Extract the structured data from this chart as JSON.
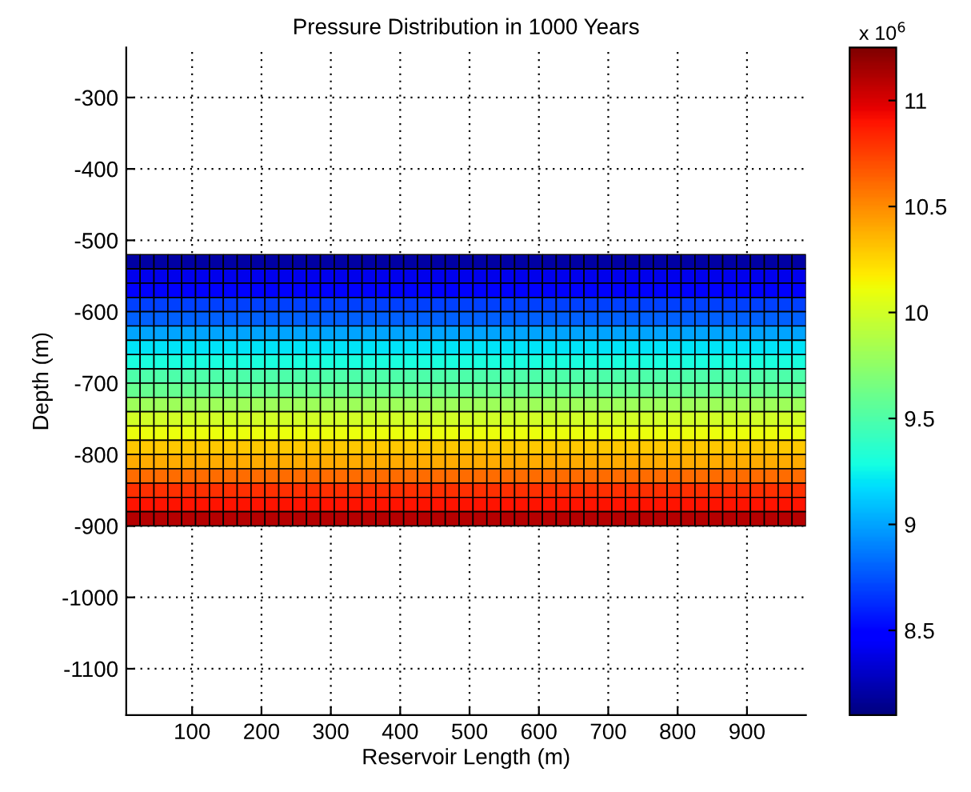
{
  "chart_data": {
    "type": "heatmap",
    "title": "Pressure Distribution in 1000 Years",
    "xlabel": "Reservoir Length (m)",
    "ylabel": "Depth (m)",
    "clabel": "x 10$^{6}$",
    "x": [
      15,
      35,
      55,
      75,
      95,
      115,
      135,
      155,
      175,
      195,
      215,
      235,
      255,
      275,
      295,
      315,
      335,
      355,
      375,
      395,
      415,
      435,
      455,
      475,
      495,
      515,
      535,
      555,
      575,
      595,
      615,
      635,
      655,
      675,
      695,
      715,
      735,
      755,
      775,
      795,
      815,
      835,
      855,
      875,
      895,
      915,
      935,
      955,
      975
    ],
    "y": [
      -530,
      -550,
      -570,
      -590,
      -610,
      -630,
      -650,
      -670,
      -690,
      -710,
      -730,
      -750,
      -770,
      -790,
      -810,
      -830,
      -850,
      -870,
      -890
    ],
    "cells": [
      [
        8.2,
        8.2,
        8.2,
        8.2,
        8.2,
        8.2,
        8.2,
        8.2,
        8.2,
        8.2,
        8.2,
        8.2,
        8.2,
        8.2,
        8.2,
        8.2,
        8.2,
        8.2,
        8.2,
        8.2,
        8.2,
        8.2,
        8.2,
        8.2,
        8.2,
        8.2,
        8.2,
        8.2,
        8.2,
        8.2,
        8.2,
        8.2,
        8.2,
        8.2,
        8.2,
        8.2,
        8.2,
        8.2,
        8.2,
        8.2,
        8.2,
        8.2,
        8.2,
        8.2,
        8.2,
        8.2,
        8.2,
        8.2,
        8.2
      ],
      [
        8.4,
        8.4,
        8.4,
        8.4,
        8.4,
        8.4,
        8.4,
        8.4,
        8.4,
        8.4,
        8.4,
        8.4,
        8.4,
        8.4,
        8.4,
        8.4,
        8.4,
        8.4,
        8.4,
        8.4,
        8.4,
        8.4,
        8.4,
        8.4,
        8.4,
        8.4,
        8.4,
        8.4,
        8.4,
        8.4,
        8.4,
        8.4,
        8.4,
        8.4,
        8.4,
        8.4,
        8.4,
        8.4,
        8.4,
        8.4,
        8.4,
        8.4,
        8.4,
        8.4,
        8.4,
        8.4,
        8.4,
        8.4,
        8.4
      ],
      [
        8.5,
        8.5,
        8.5,
        8.5,
        8.5,
        8.5,
        8.5,
        8.5,
        8.5,
        8.5,
        8.5,
        8.5,
        8.5,
        8.5,
        8.5,
        8.5,
        8.5,
        8.5,
        8.5,
        8.5,
        8.5,
        8.5,
        8.5,
        8.5,
        8.5,
        8.5,
        8.5,
        8.5,
        8.5,
        8.5,
        8.5,
        8.5,
        8.5,
        8.5,
        8.5,
        8.5,
        8.5,
        8.5,
        8.5,
        8.5,
        8.5,
        8.5,
        8.5,
        8.5,
        8.5,
        8.5,
        8.5,
        8.5,
        8.5
      ],
      [
        8.7,
        8.7,
        8.7,
        8.7,
        8.7,
        8.7,
        8.7,
        8.7,
        8.7,
        8.7,
        8.7,
        8.7,
        8.7,
        8.7,
        8.7,
        8.7,
        8.7,
        8.7,
        8.7,
        8.7,
        8.7,
        8.7,
        8.7,
        8.7,
        8.7,
        8.7,
        8.7,
        8.7,
        8.7,
        8.7,
        8.7,
        8.7,
        8.7,
        8.7,
        8.7,
        8.7,
        8.7,
        8.7,
        8.7,
        8.7,
        8.7,
        8.7,
        8.7,
        8.7,
        8.7,
        8.7,
        8.7,
        8.7,
        8.7
      ],
      [
        8.8,
        8.8,
        8.8,
        8.8,
        8.8,
        8.8,
        8.8,
        8.8,
        8.8,
        8.8,
        8.8,
        8.8,
        8.8,
        8.8,
        8.8,
        8.8,
        8.8,
        8.8,
        8.8,
        8.8,
        8.8,
        8.8,
        8.8,
        8.8,
        8.8,
        8.8,
        8.8,
        8.8,
        8.8,
        8.8,
        8.8,
        8.8,
        8.8,
        8.8,
        8.8,
        8.8,
        8.8,
        8.8,
        8.8,
        8.8,
        8.8,
        8.8,
        8.8,
        8.8,
        8.8,
        8.8,
        8.8,
        8.8,
        8.8
      ],
      [
        9.0,
        9.0,
        9.0,
        9.0,
        9.0,
        9.0,
        9.0,
        9.0,
        9.0,
        9.0,
        9.0,
        9.0,
        9.0,
        9.0,
        9.0,
        9.0,
        9.0,
        9.0,
        9.0,
        9.0,
        9.0,
        9.0,
        9.0,
        9.0,
        9.0,
        9.0,
        9.0,
        9.0,
        9.0,
        9.0,
        9.0,
        9.0,
        9.0,
        9.0,
        9.0,
        9.0,
        9.0,
        9.0,
        9.0,
        9.0,
        9.0,
        9.0,
        9.0,
        9.0,
        9.0,
        9.0,
        9.0,
        9.0,
        9.0
      ],
      [
        9.2,
        9.2,
        9.2,
        9.2,
        9.2,
        9.2,
        9.2,
        9.2,
        9.2,
        9.2,
        9.2,
        9.2,
        9.2,
        9.2,
        9.2,
        9.2,
        9.2,
        9.2,
        9.2,
        9.2,
        9.2,
        9.2,
        9.2,
        9.2,
        9.2,
        9.2,
        9.2,
        9.2,
        9.2,
        9.2,
        9.2,
        9.2,
        9.2,
        9.2,
        9.2,
        9.2,
        9.2,
        9.2,
        9.2,
        9.2,
        9.2,
        9.2,
        9.2,
        9.2,
        9.2,
        9.2,
        9.2,
        9.2,
        9.2
      ],
      [
        9.3,
        9.3,
        9.3,
        9.3,
        9.3,
        9.3,
        9.3,
        9.3,
        9.3,
        9.3,
        9.3,
        9.3,
        9.3,
        9.3,
        9.3,
        9.3,
        9.3,
        9.3,
        9.3,
        9.3,
        9.3,
        9.3,
        9.3,
        9.3,
        9.3,
        9.3,
        9.3,
        9.3,
        9.3,
        9.3,
        9.3,
        9.3,
        9.3,
        9.3,
        9.3,
        9.3,
        9.3,
        9.3,
        9.3,
        9.3,
        9.3,
        9.3,
        9.3,
        9.3,
        9.3,
        9.3,
        9.3,
        9.3,
        9.3
      ],
      [
        9.5,
        9.5,
        9.5,
        9.5,
        9.5,
        9.5,
        9.5,
        9.5,
        9.5,
        9.5,
        9.5,
        9.5,
        9.5,
        9.5,
        9.5,
        9.5,
        9.5,
        9.5,
        9.5,
        9.5,
        9.5,
        9.5,
        9.5,
        9.5,
        9.5,
        9.5,
        9.5,
        9.5,
        9.5,
        9.5,
        9.5,
        9.5,
        9.5,
        9.5,
        9.5,
        9.5,
        9.5,
        9.5,
        9.5,
        9.5,
        9.5,
        9.5,
        9.5,
        9.5,
        9.5,
        9.5,
        9.5,
        9.5,
        9.5
      ],
      [
        9.6,
        9.6,
        9.6,
        9.6,
        9.6,
        9.6,
        9.6,
        9.6,
        9.6,
        9.6,
        9.6,
        9.6,
        9.6,
        9.6,
        9.6,
        9.6,
        9.6,
        9.6,
        9.6,
        9.6,
        9.6,
        9.6,
        9.6,
        9.6,
        9.6,
        9.6,
        9.6,
        9.6,
        9.6,
        9.6,
        9.6,
        9.6,
        9.6,
        9.6,
        9.6,
        9.6,
        9.6,
        9.6,
        9.6,
        9.6,
        9.6,
        9.6,
        9.6,
        9.6,
        9.6,
        9.6,
        9.6,
        9.6,
        9.6
      ],
      [
        9.8,
        9.8,
        9.8,
        9.8,
        9.8,
        9.8,
        9.8,
        9.8,
        9.8,
        9.8,
        9.8,
        9.8,
        9.8,
        9.8,
        9.8,
        9.8,
        9.8,
        9.8,
        9.8,
        9.8,
        9.8,
        9.8,
        9.8,
        9.8,
        9.8,
        9.8,
        9.8,
        9.8,
        9.8,
        9.8,
        9.8,
        9.8,
        9.8,
        9.8,
        9.8,
        9.8,
        9.8,
        9.8,
        9.8,
        9.8,
        9.8,
        9.8,
        9.8,
        9.8,
        9.8,
        9.8,
        9.8,
        9.8,
        9.8
      ],
      [
        10.0,
        10.0,
        10.0,
        10.0,
        10.0,
        10.0,
        10.0,
        10.0,
        10.0,
        10.0,
        10.0,
        10.0,
        10.0,
        10.0,
        10.0,
        10.0,
        10.0,
        10.0,
        10.0,
        10.0,
        10.0,
        10.0,
        10.0,
        10.0,
        10.0,
        10.0,
        10.0,
        10.0,
        10.0,
        10.0,
        10.0,
        10.0,
        10.0,
        10.0,
        10.0,
        10.0,
        10.0,
        10.0,
        10.0,
        10.0,
        10.0,
        10.0,
        10.0,
        10.0,
        10.0,
        10.0,
        10.0,
        10.0,
        10.0
      ],
      [
        10.1,
        10.1,
        10.1,
        10.1,
        10.1,
        10.1,
        10.1,
        10.1,
        10.1,
        10.1,
        10.1,
        10.1,
        10.1,
        10.1,
        10.1,
        10.1,
        10.1,
        10.1,
        10.1,
        10.1,
        10.1,
        10.1,
        10.1,
        10.1,
        10.1,
        10.1,
        10.1,
        10.1,
        10.1,
        10.1,
        10.1,
        10.1,
        10.1,
        10.1,
        10.1,
        10.1,
        10.1,
        10.1,
        10.1,
        10.1,
        10.1,
        10.1,
        10.1,
        10.1,
        10.1,
        10.1,
        10.1,
        10.1,
        10.1
      ],
      [
        10.3,
        10.3,
        10.3,
        10.3,
        10.3,
        10.3,
        10.3,
        10.3,
        10.3,
        10.3,
        10.3,
        10.3,
        10.3,
        10.3,
        10.3,
        10.3,
        10.3,
        10.3,
        10.3,
        10.3,
        10.3,
        10.3,
        10.3,
        10.3,
        10.3,
        10.3,
        10.3,
        10.3,
        10.3,
        10.3,
        10.3,
        10.3,
        10.3,
        10.3,
        10.3,
        10.3,
        10.3,
        10.3,
        10.3,
        10.3,
        10.3,
        10.3,
        10.3,
        10.3,
        10.3,
        10.3,
        10.3,
        10.3,
        10.3
      ],
      [
        10.4,
        10.4,
        10.4,
        10.4,
        10.4,
        10.4,
        10.4,
        10.4,
        10.4,
        10.4,
        10.4,
        10.4,
        10.4,
        10.4,
        10.4,
        10.4,
        10.4,
        10.4,
        10.4,
        10.4,
        10.4,
        10.4,
        10.4,
        10.4,
        10.4,
        10.4,
        10.4,
        10.4,
        10.4,
        10.4,
        10.4,
        10.4,
        10.4,
        10.4,
        10.4,
        10.4,
        10.4,
        10.4,
        10.4,
        10.4,
        10.4,
        10.4,
        10.4,
        10.4,
        10.4,
        10.4,
        10.4,
        10.4,
        10.4
      ],
      [
        10.6,
        10.6,
        10.6,
        10.6,
        10.6,
        10.6,
        10.6,
        10.6,
        10.6,
        10.6,
        10.6,
        10.6,
        10.6,
        10.6,
        10.6,
        10.6,
        10.6,
        10.6,
        10.6,
        10.6,
        10.6,
        10.6,
        10.6,
        10.6,
        10.6,
        10.6,
        10.6,
        10.6,
        10.6,
        10.6,
        10.6,
        10.6,
        10.6,
        10.6,
        10.6,
        10.6,
        10.6,
        10.6,
        10.6,
        10.6,
        10.6,
        10.6,
        10.6,
        10.6,
        10.6,
        10.6,
        10.6,
        10.6,
        10.6
      ],
      [
        10.8,
        10.8,
        10.8,
        10.8,
        10.8,
        10.8,
        10.8,
        10.8,
        10.8,
        10.8,
        10.8,
        10.8,
        10.8,
        10.8,
        10.8,
        10.8,
        10.8,
        10.8,
        10.8,
        10.8,
        10.8,
        10.8,
        10.8,
        10.8,
        10.8,
        10.8,
        10.8,
        10.8,
        10.8,
        10.8,
        10.8,
        10.8,
        10.8,
        10.8,
        10.8,
        10.8,
        10.8,
        10.8,
        10.8,
        10.8,
        10.8,
        10.8,
        10.8,
        10.8,
        10.8,
        10.8,
        10.8,
        10.8,
        10.8
      ],
      [
        10.9,
        10.9,
        10.9,
        10.9,
        10.9,
        10.9,
        10.9,
        10.9,
        10.9,
        10.9,
        10.9,
        10.9,
        10.9,
        10.9,
        10.9,
        10.9,
        10.9,
        10.9,
        10.9,
        10.9,
        10.9,
        10.9,
        10.9,
        10.9,
        10.9,
        10.9,
        10.9,
        10.9,
        10.9,
        10.9,
        10.9,
        10.9,
        10.9,
        10.9,
        10.9,
        10.9,
        10.9,
        10.9,
        10.9,
        10.9,
        10.9,
        10.9,
        10.9,
        10.9,
        10.9,
        10.9,
        10.9,
        10.9,
        10.9
      ],
      [
        11.1,
        11.1,
        11.1,
        11.1,
        11.1,
        11.1,
        11.1,
        11.1,
        11.1,
        11.1,
        11.1,
        11.1,
        11.1,
        11.1,
        11.1,
        11.1,
        11.1,
        11.1,
        11.1,
        11.1,
        11.1,
        11.1,
        11.1,
        11.1,
        11.1,
        11.1,
        11.1,
        11.1,
        11.1,
        11.1,
        11.1,
        11.1,
        11.1,
        11.1,
        11.1,
        11.1,
        11.1,
        11.1,
        11.1,
        11.1,
        11.1,
        11.1,
        11.1,
        11.1,
        11.1,
        11.1,
        11.1,
        11.1,
        11.1
      ]
    ],
    "clim": [
      8.1,
      11.25
    ],
    "cticks": [
      8.5,
      9,
      9.5,
      10,
      10.5,
      11
    ],
    "xlim": [
      5,
      985
    ],
    "ylim": [
      -1165,
      -230
    ],
    "xticks": [
      100,
      200,
      300,
      400,
      500,
      600,
      700,
      800,
      900
    ],
    "yticks": [
      -1100,
      -1000,
      -900,
      -800,
      -700,
      -600,
      -500,
      -400,
      -300
    ],
    "grid": true
  }
}
